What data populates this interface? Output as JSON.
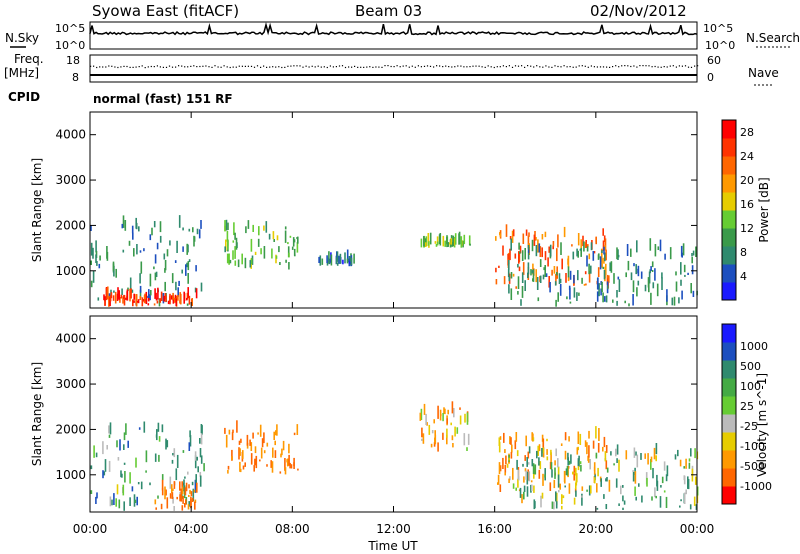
{
  "header": {
    "station": "Syowa East (fitACF)",
    "beam": "Beam 03",
    "date": "02/Nov/2012"
  },
  "side_labels": {
    "nsky": "N.Sky",
    "nsearch": "N.Search",
    "freq": "Freq.",
    "mhz": "[MHz]",
    "nave": "Nave",
    "cpid": "CPID",
    "cpid_value": "normal (fast) 151 RF"
  },
  "top_panel_ticks": {
    "nsky_high": "10^5",
    "nsky_low": "10^0",
    "nsearch_high": "10^5",
    "nsearch_low": "10^0",
    "freq_high": "18",
    "freq_low": "8",
    "nave_high": "60",
    "nave_low": "0"
  },
  "colors": {
    "power_scale": [
      "#1a1aff",
      "#1c4fbf",
      "#2f8a6e",
      "#3a9a4a",
      "#66cc33",
      "#e6cc00",
      "#ff9900",
      "#ff6600",
      "#ff3300",
      "#ff0000"
    ],
    "velocity_scale": [
      "#1a1aff",
      "#1c4fbf",
      "#2f8a6e",
      "#44aa44",
      "#66cc33",
      "#bbbbbb",
      "#e6cc00",
      "#ff9900",
      "#ff6600",
      "#ff0000"
    ]
  },
  "chart_data": [
    {
      "type": "heatmap",
      "panel": "power",
      "title": "",
      "xlabel": "",
      "ylabel": "Slant Range [km]",
      "xlim": [
        "00:00",
        "00:00"
      ],
      "ylim": [
        180,
        4500
      ],
      "x_ticks": [
        "00:00",
        "04:00",
        "08:00",
        "12:00",
        "16:00",
        "20:00",
        "00:00"
      ],
      "y_ticks": [
        "1000",
        "2000",
        "3000",
        "4000"
      ],
      "colorbar": {
        "label": "Power [dB]",
        "ticks": [
          "4",
          "8",
          "12",
          "16",
          "20",
          "24",
          "28"
        ],
        "range": [
          0,
          30
        ]
      },
      "regions": [
        {
          "t0": 0.0,
          "t1": 4.5,
          "r0": 200,
          "r1": 2000,
          "level": 8
        },
        {
          "t0": 0.5,
          "t1": 4.2,
          "r0": 200,
          "r1": 400,
          "level": 26
        },
        {
          "t0": 5.3,
          "t1": 8.2,
          "r0": 1000,
          "r1": 1950,
          "level": 12
        },
        {
          "t0": 9.0,
          "t1": 10.5,
          "r0": 1100,
          "r1": 1200,
          "level": 6
        },
        {
          "t0": 13.0,
          "t1": 15.0,
          "r0": 1500,
          "r1": 1600,
          "level": 14
        },
        {
          "t0": 16.0,
          "t1": 20.5,
          "r0": 600,
          "r1": 1800,
          "level": 22
        },
        {
          "t0": 16.5,
          "t1": 24.0,
          "r0": 200,
          "r1": 1500,
          "level": 8
        }
      ]
    },
    {
      "type": "heatmap",
      "panel": "velocity",
      "title": "",
      "xlabel": "Time UT",
      "ylabel": "Slant Range [km]",
      "xlim": [
        "00:00",
        "00:00"
      ],
      "ylim": [
        180,
        4500
      ],
      "x_ticks": [
        "00:00",
        "04:00",
        "08:00",
        "12:00",
        "16:00",
        "20:00",
        "00:00"
      ],
      "y_ticks": [
        "1000",
        "2000",
        "3000",
        "4000"
      ],
      "colorbar": {
        "label": "Velocity [m s^-1]",
        "ticks": [
          "1000",
          "500",
          "100",
          "25",
          "-25",
          "-100",
          "-500",
          "-1000"
        ]
      },
      "regions": [
        {
          "t0": 0.0,
          "t1": 4.5,
          "r0": 200,
          "r1": 2000,
          "value": 150
        },
        {
          "t0": 2.5,
          "t1": 4.2,
          "r0": 200,
          "r1": 700,
          "value": -400
        },
        {
          "t0": 5.3,
          "t1": 8.2,
          "r0": 1000,
          "r1": 1950,
          "value": -300
        },
        {
          "t0": 13.0,
          "t1": 15.0,
          "r0": 1500,
          "r1": 2500,
          "value": -150
        },
        {
          "t0": 16.0,
          "t1": 20.5,
          "r0": 600,
          "r1": 1800,
          "value": -200
        },
        {
          "t0": 16.5,
          "t1": 24.0,
          "r0": 200,
          "r1": 1500,
          "value": 80
        }
      ]
    }
  ]
}
